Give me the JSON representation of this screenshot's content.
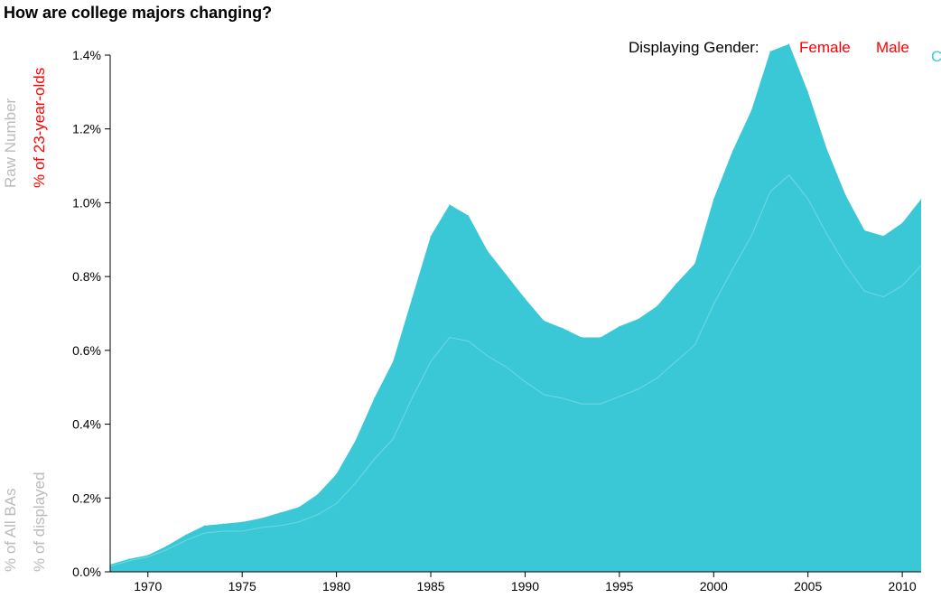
{
  "title": "How are college majors changing?",
  "controls": {
    "gender_label": "Displaying Gender:",
    "gender_options": [
      {
        "label": "Female",
        "color": "#ff0000"
      },
      {
        "label": "Male",
        "color": "#ff0000"
      },
      {
        "label": "C",
        "color": "#3ac8d6"
      }
    ]
  },
  "measure_options": {
    "raw_number": "Raw Number",
    "pct_23": "% of 23-year-olds",
    "pct_all_bas": "% of All BAs",
    "pct_displayed": "% of displayed"
  },
  "colors": {
    "area": "#3ac8d6",
    "inner_line": "#6fd8e2",
    "active": "#ff0000",
    "inactive": "#bbbbbb",
    "axis": "#000000"
  },
  "chart_data": {
    "type": "area",
    "title": "How are college majors changing?",
    "ylabel": "% of 23-year-olds",
    "xlim": [
      1968,
      2011
    ],
    "ylim": [
      0,
      1.4
    ],
    "x_ticks": [
      1970,
      1975,
      1980,
      1985,
      1990,
      1995,
      2000,
      2005,
      2010
    ],
    "y_ticks": [
      0,
      0.2,
      0.4,
      0.6,
      0.8,
      1.0,
      1.2,
      1.4
    ],
    "y_tick_labels": [
      "0.0%",
      "0.2%",
      "0.4%",
      "0.6%",
      "0.8%",
      "1.0%",
      "1.2%",
      "1.4%"
    ],
    "x": [
      1968,
      1969,
      1970,
      1971,
      1972,
      1973,
      1974,
      1975,
      1976,
      1977,
      1978,
      1979,
      1980,
      1981,
      1982,
      1983,
      1984,
      1985,
      1986,
      1987,
      1988,
      1989,
      1990,
      1991,
      1992,
      1993,
      1994,
      1995,
      1996,
      1997,
      1998,
      1999,
      2000,
      2001,
      2002,
      2003,
      2004,
      2005,
      2006,
      2007,
      2008,
      2009,
      2010,
      2011
    ],
    "series": [
      {
        "values": [
          0.015,
          0.03,
          0.04,
          0.06,
          0.085,
          0.105,
          0.11,
          0.11,
          0.12,
          0.125,
          0.135,
          0.155,
          0.185,
          0.24,
          0.305,
          0.36,
          0.47,
          0.57,
          0.635,
          0.625,
          0.585,
          0.555,
          0.515,
          0.48,
          0.47,
          0.455,
          0.455,
          0.475,
          0.495,
          0.525,
          0.57,
          0.615,
          0.725,
          0.82,
          0.91,
          1.03,
          1.075,
          1.01,
          0.915,
          0.83,
          0.76,
          0.745,
          0.775,
          0.83
        ]
      },
      {
        "values": [
          0.02,
          0.035,
          0.045,
          0.07,
          0.1,
          0.125,
          0.13,
          0.135,
          0.145,
          0.16,
          0.175,
          0.21,
          0.265,
          0.355,
          0.47,
          0.57,
          0.74,
          0.91,
          0.995,
          0.965,
          0.87,
          0.805,
          0.74,
          0.68,
          0.66,
          0.635,
          0.635,
          0.665,
          0.685,
          0.72,
          0.78,
          0.835,
          1.01,
          1.14,
          1.25,
          1.41,
          1.43,
          1.3,
          1.145,
          1.02,
          0.925,
          0.91,
          0.945,
          1.01
        ]
      }
    ]
  }
}
